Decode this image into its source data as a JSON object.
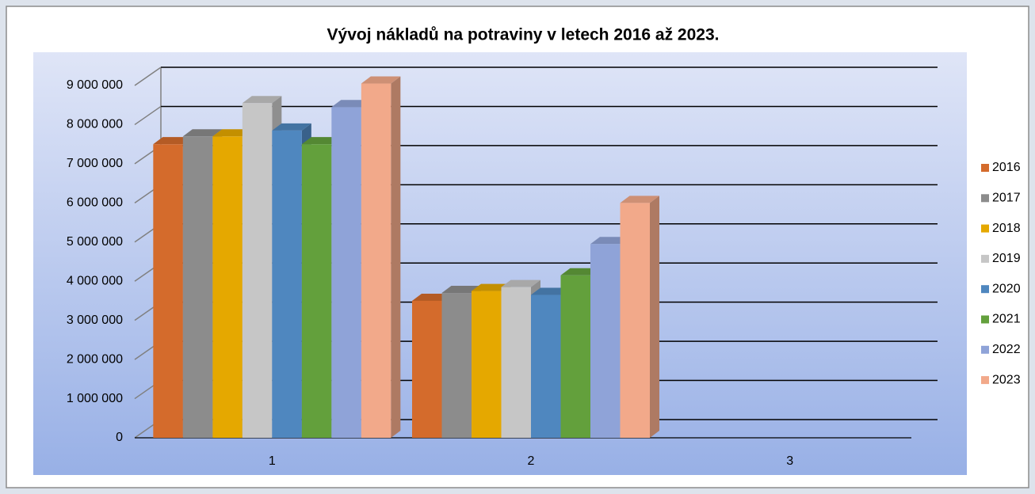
{
  "chart_data": {
    "type": "bar3d",
    "title": "Vývoj nákladů na potraviny v letech 2016 až 2023.",
    "categories": [
      "1",
      "2",
      "3"
    ],
    "series": [
      {
        "name": "2016",
        "color": "#d46b2c",
        "values": [
          7500000,
          3500000,
          null
        ]
      },
      {
        "name": "2017",
        "color": "#8c8c8c",
        "values": [
          7700000,
          3700000,
          null
        ]
      },
      {
        "name": "2018",
        "color": "#e5a800",
        "values": [
          7700000,
          3750000,
          null
        ]
      },
      {
        "name": "2019",
        "color": "#c6c6c6",
        "values": [
          8550000,
          3850000,
          null
        ]
      },
      {
        "name": "2020",
        "color": "#4f87bf",
        "values": [
          7850000,
          3650000,
          null
        ]
      },
      {
        "name": "2021",
        "color": "#63a03c",
        "values": [
          7500000,
          4150000,
          null
        ]
      },
      {
        "name": "2022",
        "color": "#8fa3d8",
        "values": [
          8450000,
          4950000,
          null
        ]
      },
      {
        "name": "2023",
        "color": "#f2a98a",
        "values": [
          9050000,
          6000000,
          null
        ]
      }
    ],
    "ylim": [
      0,
      9000000
    ],
    "yticks": [
      0,
      {
        "value": 1000000,
        "label": "1 000 000"
      },
      {
        "value": 2000000,
        "label": "2 000 000"
      },
      {
        "value": 3000000,
        "label": "3 000 000"
      },
      {
        "value": 4000000,
        "label": "4 000 000"
      },
      {
        "value": 5000000,
        "label": "5 000 000"
      },
      {
        "value": 6000000,
        "label": "6 000 000"
      },
      {
        "value": 7000000,
        "label": "7 000 000"
      },
      {
        "value": 8000000,
        "label": "8 000 000"
      },
      {
        "value": 9000000,
        "label": "9 000 000"
      }
    ],
    "grid": true,
    "legend": "right"
  }
}
